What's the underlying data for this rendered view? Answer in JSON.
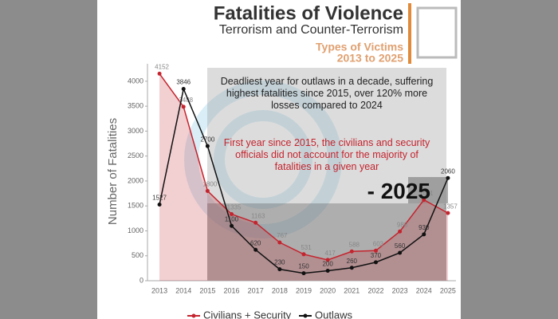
{
  "chart_data": {
    "type": "line",
    "title": "Fatalities of Violence",
    "subtitle": "Terrorism and Counter-Terrorism",
    "side_title": "Types of Victims",
    "side_subtitle": "2013 to 2025",
    "y_label": "Number of Fatalities",
    "annotations": [
      "Deadliest year for outlaws in a decade, suffering highest fatalities since 2015, over 120% more losses compared to 2024",
      "First year since 2015, the civilians and security officials did not account for the majority of fatalities in a given year",
      "- 2025"
    ],
    "categories": [
      "2013",
      "2014",
      "2015",
      "2016",
      "2017",
      "2018",
      "2019",
      "2020",
      "2021",
      "2022",
      "2023",
      "2024",
      "2025"
    ],
    "series": [
      {
        "name": "Civilians + Security",
        "color": "#c4242e",
        "values": [
          4152,
          3488,
          1800,
          1335,
          1163,
          767,
          531,
          417,
          588,
          603,
          988,
          1621,
          1357
        ]
      },
      {
        "name": "Outlaws",
        "color": "#111111",
        "values": [
          1527,
          3846,
          2700,
          1100,
          620,
          230,
          150,
          200,
          260,
          370,
          560,
          930,
          2060
        ]
      }
    ],
    "ylim": [
      0,
      4350
    ],
    "yticks": [
      0,
      500,
      1000,
      1500,
      2000,
      2500,
      3000,
      3500,
      4000
    ]
  }
}
